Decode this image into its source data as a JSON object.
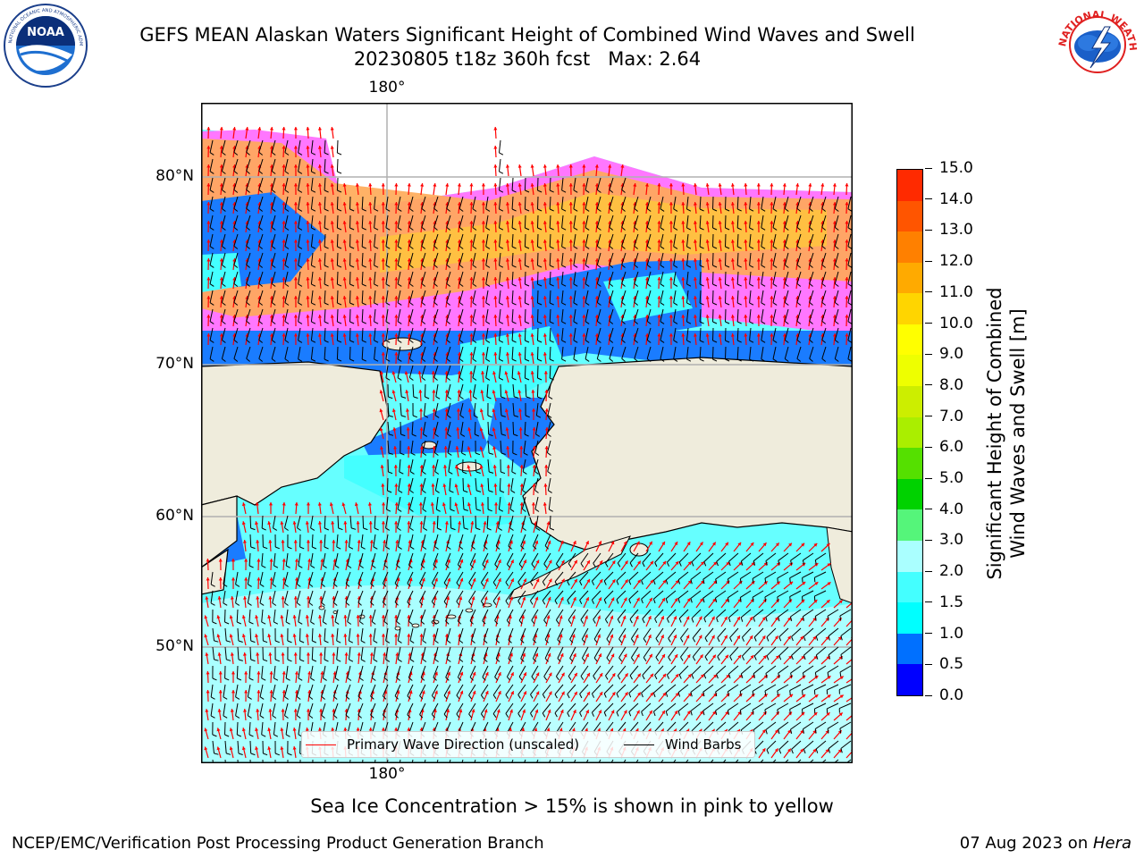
{
  "title": {
    "line1": "GEFS MEAN Alaskan Waters Significant Height of Combined Wind Waves and Swell",
    "line2": "20230805 t18z 360h fcst   Max: 2.64"
  },
  "logos": {
    "noaa": {
      "text": "NOAA",
      "ring_text": "NATIONAL OCEANIC AND ATMOSPHERIC ADMINISTRATION · U.S. DEPARTMENT OF COMMERCE"
    },
    "nws": {
      "ring_text": "NATIONAL WEATHER SERVICE"
    }
  },
  "map": {
    "lat_labels": [
      "80°N",
      "70°N",
      "60°N",
      "50°N"
    ],
    "lon_label_top": "180°",
    "lon_label_bottom": "180°",
    "land_color": "#efecdc",
    "ocean_dominant_color": "#66ffff"
  },
  "legend": {
    "wave_dir": {
      "label": "Primary Wave Direction (unscaled)",
      "color": "#ff0000"
    },
    "wind_barbs": {
      "label": "Wind Barbs",
      "color": "#000000"
    }
  },
  "colorbar": {
    "label_line1": "Significant Height of Combined",
    "label_line2": "Wind Waves and Swell [m]",
    "ticks": [
      "0.0",
      "0.5",
      "1.0",
      "1.5",
      "2.0",
      "3.0",
      "4.0",
      "5.0",
      "6.0",
      "7.0",
      "8.0",
      "9.0",
      "10.0",
      "11.0",
      "12.0",
      "13.0",
      "14.0",
      "15.0"
    ],
    "colors": [
      "#0000ff",
      "#0070ff",
      "#00ffff",
      "#44ffff",
      "#aaffff",
      "#55f57a",
      "#00d200",
      "#55e000",
      "#aaee00",
      "#ccee00",
      "#eeff00",
      "#ffff00",
      "#ffd500",
      "#ffaa00",
      "#ff8000",
      "#ff5500",
      "#ff2a00",
      "#ff0000"
    ]
  },
  "note": "Sea Ice Concentration > 15% is shown in pink to yellow",
  "footer": {
    "left": "NCEP/EMC/Verification Post Processing Product Generation Branch",
    "right_prefix": "07 Aug 2023 on ",
    "right_host": "Hera"
  }
}
